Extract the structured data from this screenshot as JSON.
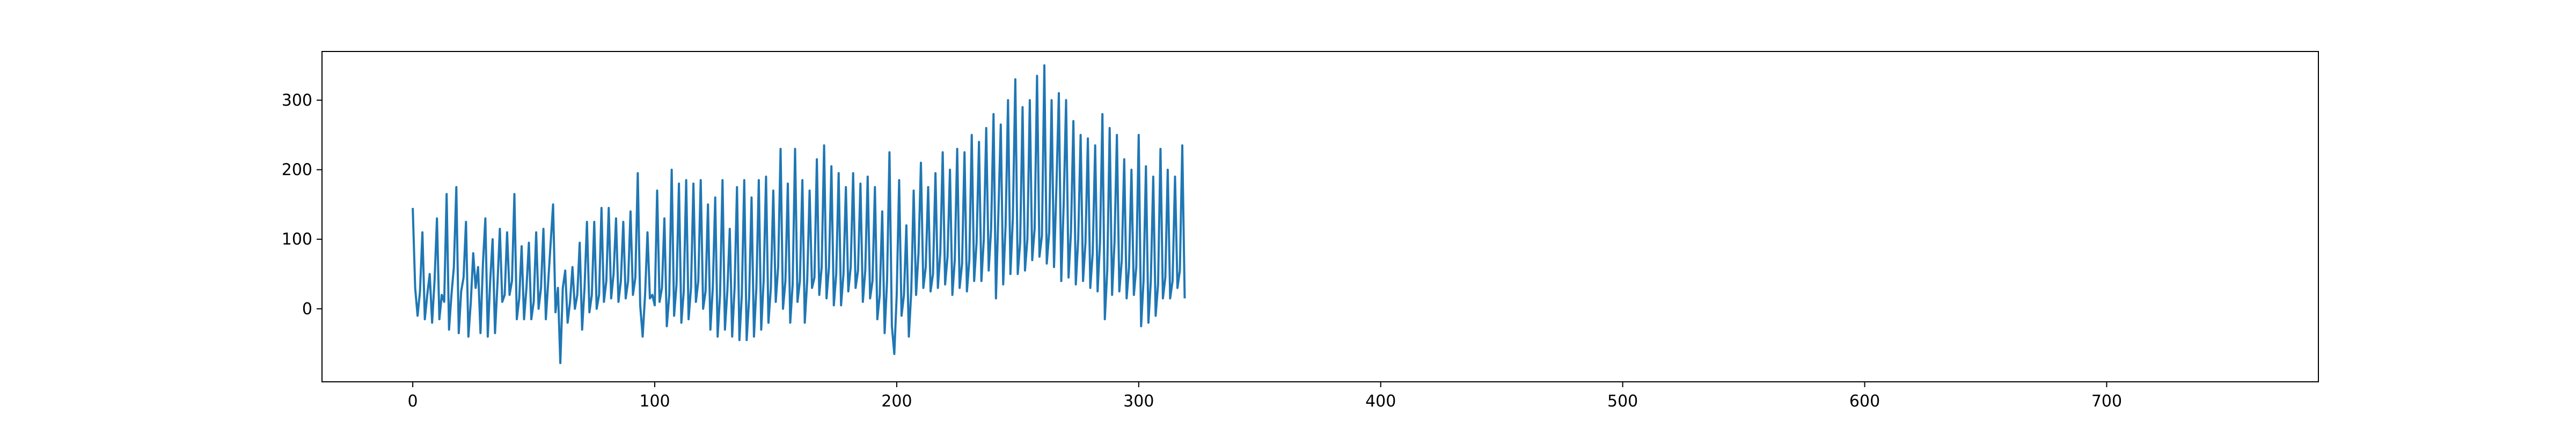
{
  "chart_data": {
    "type": "line",
    "title": "",
    "xlabel": "",
    "ylabel": "",
    "xlim": [
      -37.5,
      787.5
    ],
    "ylim": [
      -105,
      370
    ],
    "xticks": [
      0,
      100,
      200,
      300,
      400,
      500,
      600,
      700
    ],
    "yticks": [
      0,
      100,
      200,
      300
    ],
    "x_tick_labels": [
      "0",
      "100",
      "200",
      "300",
      "400",
      "500",
      "600",
      "700"
    ],
    "y_tick_labels": [
      "0",
      "100",
      "200",
      "300"
    ],
    "grid": false,
    "legend": "none",
    "series": [
      {
        "color": "#1f77b4",
        "points": [
          [
            0,
            145
          ],
          [
            1,
            30
          ],
          [
            2,
            -10
          ],
          [
            3,
            25
          ],
          [
            4,
            110
          ],
          [
            5,
            -15
          ],
          [
            6,
            20
          ],
          [
            7,
            50
          ],
          [
            8,
            -20
          ],
          [
            9,
            40
          ],
          [
            10,
            130
          ],
          [
            11,
            -15
          ],
          [
            12,
            20
          ],
          [
            13,
            10
          ],
          [
            14,
            165
          ],
          [
            15,
            -30
          ],
          [
            16,
            20
          ],
          [
            17,
            60
          ],
          [
            18,
            175
          ],
          [
            19,
            -35
          ],
          [
            20,
            25
          ],
          [
            21,
            45
          ],
          [
            22,
            125
          ],
          [
            23,
            -40
          ],
          [
            24,
            10
          ],
          [
            25,
            80
          ],
          [
            26,
            30
          ],
          [
            27,
            60
          ],
          [
            28,
            -35
          ],
          [
            29,
            65
          ],
          [
            30,
            130
          ],
          [
            31,
            -40
          ],
          [
            32,
            40
          ],
          [
            33,
            100
          ],
          [
            34,
            -35
          ],
          [
            35,
            35
          ],
          [
            36,
            115
          ],
          [
            37,
            10
          ],
          [
            38,
            20
          ],
          [
            39,
            110
          ],
          [
            40,
            20
          ],
          [
            41,
            40
          ],
          [
            42,
            165
          ],
          [
            43,
            -15
          ],
          [
            44,
            15
          ],
          [
            45,
            90
          ],
          [
            46,
            -15
          ],
          [
            47,
            30
          ],
          [
            48,
            95
          ],
          [
            49,
            -15
          ],
          [
            50,
            10
          ],
          [
            51,
            110
          ],
          [
            52,
            0
          ],
          [
            53,
            30
          ],
          [
            54,
            115
          ],
          [
            55,
            -15
          ],
          [
            56,
            40
          ],
          [
            57,
            95
          ],
          [
            58,
            150
          ],
          [
            59,
            -5
          ],
          [
            60,
            30
          ],
          [
            61,
            -78
          ],
          [
            62,
            30
          ],
          [
            63,
            55
          ],
          [
            64,
            -20
          ],
          [
            65,
            10
          ],
          [
            66,
            60
          ],
          [
            67,
            0
          ],
          [
            68,
            20
          ],
          [
            69,
            95
          ],
          [
            70,
            -30
          ],
          [
            71,
            30
          ],
          [
            72,
            125
          ],
          [
            73,
            -5
          ],
          [
            74,
            20
          ],
          [
            75,
            125
          ],
          [
            76,
            0
          ],
          [
            77,
            20
          ],
          [
            78,
            145
          ],
          [
            79,
            10
          ],
          [
            80,
            40
          ],
          [
            81,
            145
          ],
          [
            82,
            15
          ],
          [
            83,
            50
          ],
          [
            84,
            130
          ],
          [
            85,
            10
          ],
          [
            86,
            40
          ],
          [
            87,
            125
          ],
          [
            88,
            15
          ],
          [
            89,
            40
          ],
          [
            90,
            140
          ],
          [
            91,
            20
          ],
          [
            92,
            45
          ],
          [
            93,
            195
          ],
          [
            94,
            5
          ],
          [
            95,
            -40
          ],
          [
            96,
            20
          ],
          [
            97,
            110
          ],
          [
            98,
            15
          ],
          [
            99,
            20
          ],
          [
            100,
            5
          ],
          [
            101,
            170
          ],
          [
            102,
            10
          ],
          [
            103,
            30
          ],
          [
            104,
            130
          ],
          [
            105,
            -25
          ],
          [
            106,
            20
          ],
          [
            107,
            200
          ],
          [
            108,
            -10
          ],
          [
            109,
            35
          ],
          [
            110,
            180
          ],
          [
            111,
            -20
          ],
          [
            112,
            25
          ],
          [
            113,
            185
          ],
          [
            114,
            -15
          ],
          [
            115,
            30
          ],
          [
            116,
            180
          ],
          [
            117,
            10
          ],
          [
            118,
            40
          ],
          [
            119,
            185
          ],
          [
            120,
            0
          ],
          [
            121,
            25
          ],
          [
            122,
            150
          ],
          [
            123,
            -30
          ],
          [
            124,
            30
          ],
          [
            125,
            160
          ],
          [
            126,
            -40
          ],
          [
            127,
            20
          ],
          [
            128,
            185
          ],
          [
            129,
            -30
          ],
          [
            130,
            25
          ],
          [
            131,
            115
          ],
          [
            132,
            -40
          ],
          [
            133,
            30
          ],
          [
            134,
            175
          ],
          [
            135,
            -45
          ],
          [
            136,
            20
          ],
          [
            137,
            185
          ],
          [
            138,
            -45
          ],
          [
            139,
            15
          ],
          [
            140,
            160
          ],
          [
            141,
            -40
          ],
          [
            142,
            30
          ],
          [
            143,
            185
          ],
          [
            144,
            -30
          ],
          [
            145,
            40
          ],
          [
            146,
            190
          ],
          [
            147,
            -20
          ],
          [
            148,
            30
          ],
          [
            149,
            170
          ],
          [
            150,
            10
          ],
          [
            151,
            60
          ],
          [
            152,
            230
          ],
          [
            153,
            0
          ],
          [
            154,
            40
          ],
          [
            155,
            180
          ],
          [
            156,
            -20
          ],
          [
            157,
            35
          ],
          [
            158,
            230
          ],
          [
            159,
            10
          ],
          [
            160,
            40
          ],
          [
            161,
            185
          ],
          [
            162,
            -20
          ],
          [
            163,
            40
          ],
          [
            164,
            170
          ],
          [
            165,
            30
          ],
          [
            166,
            45
          ],
          [
            167,
            215
          ],
          [
            168,
            20
          ],
          [
            169,
            60
          ],
          [
            170,
            235
          ],
          [
            171,
            15
          ],
          [
            172,
            60
          ],
          [
            173,
            205
          ],
          [
            174,
            5
          ],
          [
            175,
            50
          ],
          [
            176,
            195
          ],
          [
            177,
            5
          ],
          [
            178,
            50
          ],
          [
            179,
            175
          ],
          [
            180,
            25
          ],
          [
            181,
            60
          ],
          [
            182,
            195
          ],
          [
            183,
            30
          ],
          [
            184,
            55
          ],
          [
            185,
            180
          ],
          [
            186,
            10
          ],
          [
            187,
            55
          ],
          [
            188,
            190
          ],
          [
            189,
            15
          ],
          [
            190,
            40
          ],
          [
            191,
            175
          ],
          [
            192,
            -15
          ],
          [
            193,
            20
          ],
          [
            194,
            140
          ],
          [
            195,
            -35
          ],
          [
            196,
            40
          ],
          [
            197,
            225
          ],
          [
            198,
            -25
          ],
          [
            199,
            -65
          ],
          [
            200,
            20
          ],
          [
            201,
            185
          ],
          [
            202,
            -10
          ],
          [
            203,
            20
          ],
          [
            204,
            120
          ],
          [
            205,
            -40
          ],
          [
            206,
            25
          ],
          [
            207,
            170
          ],
          [
            208,
            20
          ],
          [
            209,
            80
          ],
          [
            210,
            210
          ],
          [
            211,
            30
          ],
          [
            212,
            60
          ],
          [
            213,
            175
          ],
          [
            214,
            25
          ],
          [
            215,
            50
          ],
          [
            216,
            195
          ],
          [
            217,
            30
          ],
          [
            218,
            80
          ],
          [
            219,
            225
          ],
          [
            220,
            35
          ],
          [
            221,
            75
          ],
          [
            222,
            200
          ],
          [
            223,
            20
          ],
          [
            224,
            70
          ],
          [
            225,
            230
          ],
          [
            226,
            30
          ],
          [
            227,
            65
          ],
          [
            228,
            225
          ],
          [
            229,
            25
          ],
          [
            230,
            70
          ],
          [
            231,
            250
          ],
          [
            232,
            40
          ],
          [
            233,
            95
          ],
          [
            234,
            240
          ],
          [
            235,
            40
          ],
          [
            236,
            100
          ],
          [
            237,
            260
          ],
          [
            238,
            55
          ],
          [
            239,
            115
          ],
          [
            240,
            280
          ],
          [
            241,
            15
          ],
          [
            242,
            135
          ],
          [
            243,
            265
          ],
          [
            244,
            35
          ],
          [
            245,
            120
          ],
          [
            246,
            300
          ],
          [
            247,
            50
          ],
          [
            248,
            130
          ],
          [
            249,
            330
          ],
          [
            250,
            50
          ],
          [
            251,
            95
          ],
          [
            252,
            290
          ],
          [
            253,
            55
          ],
          [
            254,
            100
          ],
          [
            255,
            300
          ],
          [
            256,
            70
          ],
          [
            257,
            115
          ],
          [
            258,
            335
          ],
          [
            259,
            75
          ],
          [
            260,
            105
          ],
          [
            261,
            350
          ],
          [
            262,
            65
          ],
          [
            263,
            110
          ],
          [
            264,
            300
          ],
          [
            265,
            60
          ],
          [
            266,
            175
          ],
          [
            267,
            310
          ],
          [
            268,
            40
          ],
          [
            269,
            150
          ],
          [
            270,
            300
          ],
          [
            271,
            45
          ],
          [
            272,
            110
          ],
          [
            273,
            270
          ],
          [
            274,
            35
          ],
          [
            275,
            100
          ],
          [
            276,
            250
          ],
          [
            277,
            40
          ],
          [
            278,
            95
          ],
          [
            279,
            245
          ],
          [
            280,
            30
          ],
          [
            281,
            80
          ],
          [
            282,
            235
          ],
          [
            283,
            25
          ],
          [
            284,
            95
          ],
          [
            285,
            280
          ],
          [
            286,
            -15
          ],
          [
            287,
            55
          ],
          [
            288,
            260
          ],
          [
            289,
            20
          ],
          [
            290,
            95
          ],
          [
            291,
            250
          ],
          [
            292,
            25
          ],
          [
            293,
            70
          ],
          [
            294,
            215
          ],
          [
            295,
            15
          ],
          [
            296,
            60
          ],
          [
            297,
            200
          ],
          [
            298,
            20
          ],
          [
            299,
            60
          ],
          [
            300,
            250
          ],
          [
            301,
            -25
          ],
          [
            302,
            40
          ],
          [
            303,
            205
          ],
          [
            304,
            -20
          ],
          [
            305,
            40
          ],
          [
            306,
            190
          ],
          [
            307,
            -10
          ],
          [
            308,
            35
          ],
          [
            309,
            230
          ],
          [
            310,
            15
          ],
          [
            311,
            45
          ],
          [
            312,
            200
          ],
          [
            313,
            15
          ],
          [
            314,
            40
          ],
          [
            315,
            190
          ],
          [
            316,
            30
          ],
          [
            317,
            55
          ],
          [
            318,
            235
          ],
          [
            319,
            15
          ]
        ]
      }
    ]
  }
}
